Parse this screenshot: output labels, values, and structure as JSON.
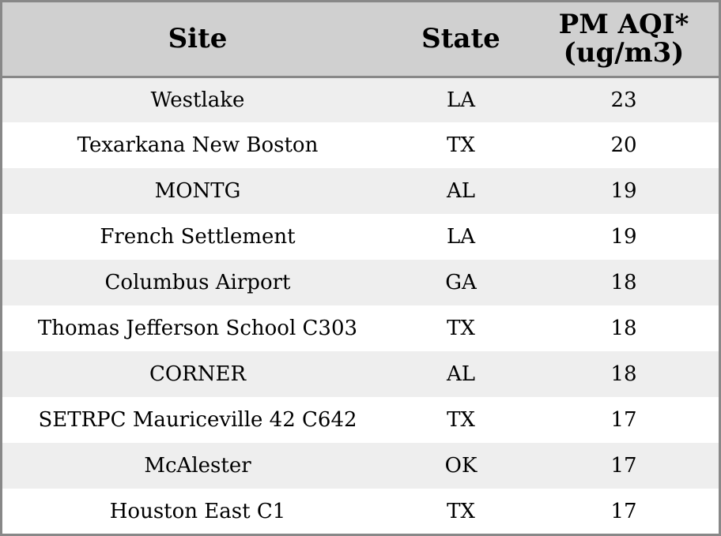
{
  "chart_data": {
    "type": "table",
    "columns": [
      "Site",
      "State",
      "PM AQI*",
      "(ug/m3)"
    ],
    "header": {
      "site": "Site",
      "state": "State",
      "aqi_line1": "PM AQI*",
      "aqi_line2": "(ug/m3)"
    },
    "rows": [
      {
        "site": "Westlake",
        "state": "LA",
        "aqi": "23"
      },
      {
        "site": "Texarkana New Boston",
        "state": "TX",
        "aqi": "20"
      },
      {
        "site": "MONTG",
        "state": "AL",
        "aqi": "19"
      },
      {
        "site": "French Settlement",
        "state": "LA",
        "aqi": "19"
      },
      {
        "site": "Columbus Airport",
        "state": "GA",
        "aqi": "18"
      },
      {
        "site": "Thomas Jefferson School C303",
        "state": "TX",
        "aqi": "18"
      },
      {
        "site": "CORNER",
        "state": "AL",
        "aqi": "18"
      },
      {
        "site": "SETRPC Mauriceville 42 C642",
        "state": "TX",
        "aqi": "17"
      },
      {
        "site": "McAlester",
        "state": "OK",
        "aqi": "17"
      },
      {
        "site": "Houston East C1",
        "state": "TX",
        "aqi": "17"
      }
    ]
  },
  "colors": {
    "header_bg": "#d0d0d0",
    "row_alt_bg": "#eeeeee",
    "row_bg": "#ffffff",
    "border": "#888888"
  }
}
